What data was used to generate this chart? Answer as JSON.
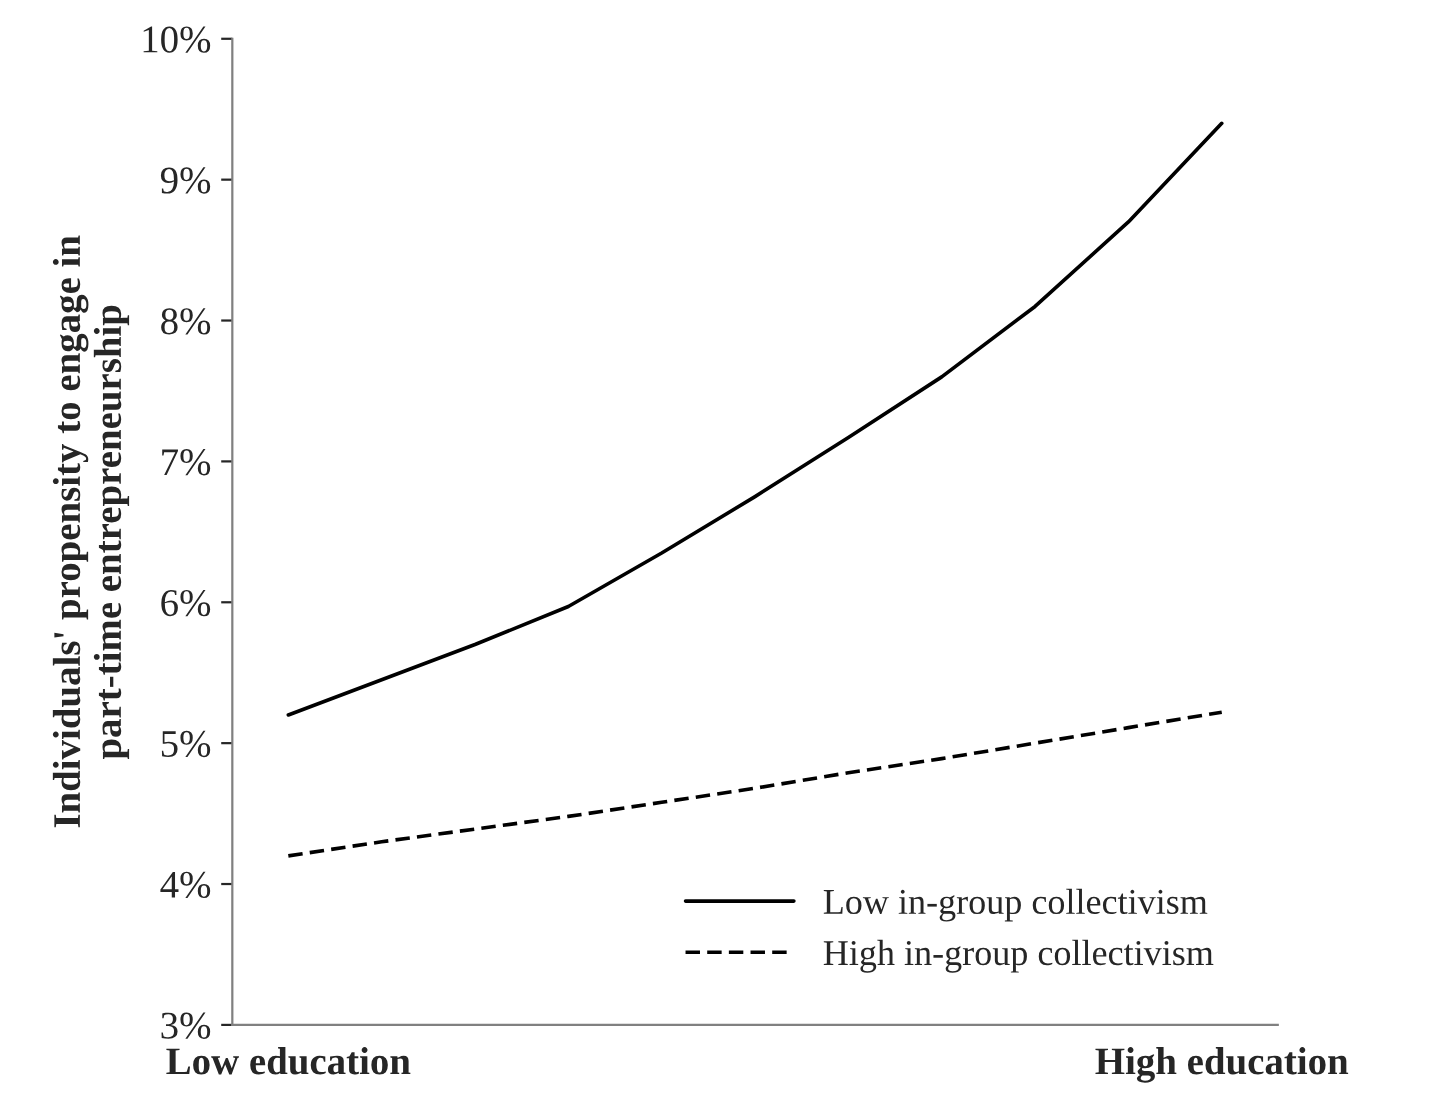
{
  "chart_data": {
    "type": "line",
    "ylabel": "Individuals' propensity to engage in\npart-time entrepreneurship",
    "categories": [
      "Low education",
      null,
      null,
      null,
      null,
      null,
      null,
      null,
      null,
      null,
      "High education"
    ],
    "ylim": [
      3,
      10
    ],
    "yticks": [
      {
        "value": 3,
        "label": "3%"
      },
      {
        "value": 4,
        "label": "4%"
      },
      {
        "value": 5,
        "label": "5%"
      },
      {
        "value": 6,
        "label": "6%"
      },
      {
        "value": 7,
        "label": "7%"
      },
      {
        "value": 8,
        "label": "8%"
      },
      {
        "value": 9,
        "label": "9%"
      },
      {
        "value": 10,
        "label": "10%"
      }
    ],
    "grid": false,
    "legend": "bottom right",
    "marker": "none",
    "series": [
      {
        "name": "Low in-group collectivism",
        "color": "#000000",
        "line_style": "solid",
        "values": [
          5.2,
          5.45,
          5.7,
          5.97,
          6.35,
          6.75,
          7.17,
          7.6,
          8.1,
          8.7,
          9.4
        ]
      },
      {
        "name": "High in-group collectivism",
        "color": "#000000",
        "line_style": "dashed",
        "values": [
          4.2,
          4.3,
          4.39,
          4.48,
          4.58,
          4.68,
          4.79,
          4.89,
          5.0,
          5.11,
          5.22
        ]
      }
    ]
  }
}
